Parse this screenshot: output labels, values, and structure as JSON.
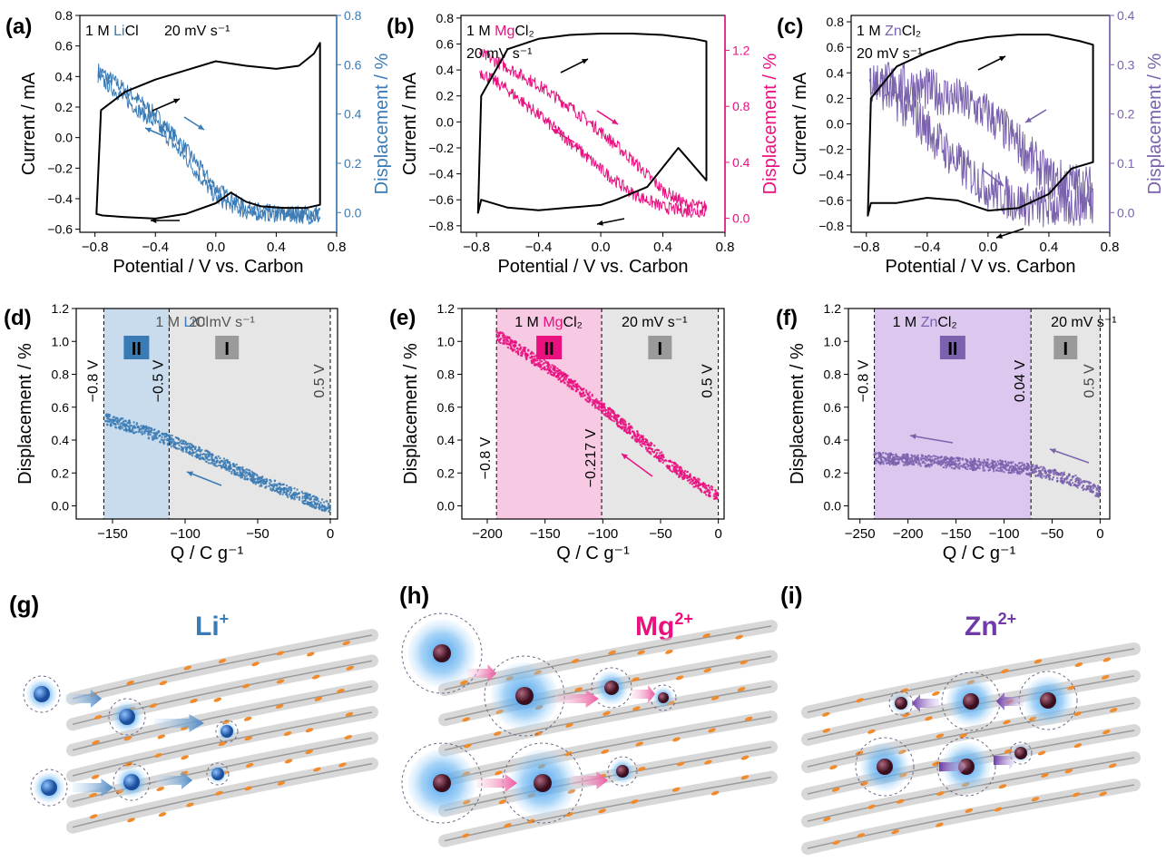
{
  "colors": {
    "li": "#3b7bb5",
    "mg": "#e8117f",
    "zn": "#7a62ad",
    "cv": "#000000",
    "region_ii_li": "#c9dcee",
    "region_ii_mg": "#f8c9e2",
    "region_ii_zn": "#dcc8ef",
    "region_i": "#e6e6e6",
    "badge_grey": "#9a9a9a",
    "ion_core": "#2a5fb0",
    "ion_core_dark": "#5c1a2e",
    "sheet": "#cfcfcf",
    "dot": "#f08a2a",
    "glow": "#4aa3ee"
  },
  "panels": {
    "a": {
      "tag": "(a)",
      "label_conc": "1 M",
      "label_ion": "Li",
      "label_rest": "Cl",
      "label_rate": "20 mV s⁻¹",
      "ylabel": "Current / mA",
      "y2label": "Displacement / %",
      "xlabel": "Potential / V vs. Carbon"
    },
    "b": {
      "tag": "(b)",
      "label_conc": "1 M",
      "label_ion": "Mg",
      "label_rest": "Cl₂",
      "label_rate": "20 mV s⁻¹",
      "ylabel": "Current / mA",
      "y2label": "Displacement / %",
      "xlabel": "Potential / V vs. Carbon"
    },
    "c": {
      "tag": "(c)",
      "label_conc": "1 M",
      "label_ion": "Zn",
      "label_rest": "Cl₂",
      "label_rate": "20 mV s⁻¹",
      "ylabel": "Current / mA",
      "y2label": "Displacement / %",
      "xlabel": "Potential / V vs. Carbon"
    },
    "d": {
      "tag": "(d)",
      "label_conc": "1 M",
      "label_ion": "Li",
      "label_rest": "Cl",
      "label_rate": "20 mV s⁻¹",
      "ylabel": "Displacement / %",
      "xlabel": "Q / C g⁻¹",
      "badge_ii": "II",
      "badge_i": "I",
      "v_labels": [
        "−0.8 V",
        "−0.5 V",
        "0.5 V"
      ]
    },
    "e": {
      "tag": "(e)",
      "label_conc": "1 M",
      "label_ion": "Mg",
      "label_rest": "Cl₂",
      "label_rate": "20 mV s⁻¹",
      "ylabel": "Displacement / %",
      "xlabel": "Q / C g⁻¹",
      "badge_ii": "II",
      "badge_i": "I",
      "v_labels": [
        "−0.8 V",
        "−0.217 V",
        "0.5 V"
      ]
    },
    "f": {
      "tag": "(f)",
      "label_conc": "1 M",
      "label_ion": "Zn",
      "label_rest": "Cl₂",
      "label_rate": "20 mV s⁻¹",
      "ylabel": "Displacement / %",
      "xlabel": "Q / C g⁻¹",
      "badge_ii": "II",
      "badge_i": "I",
      "v_labels": [
        "−0.8 V",
        "0.04 V",
        "0.5 V"
      ]
    },
    "g": {
      "tag": "(g)",
      "ion": "Li",
      "charge": "+"
    },
    "h": {
      "tag": "(h)",
      "ion": "Mg",
      "charge": "2+"
    },
    "i": {
      "tag": "(i)",
      "ion": "Zn",
      "charge": "2+"
    }
  },
  "chart_data": [
    {
      "panel": "a",
      "type": "line",
      "xlim": [
        -0.9,
        0.8
      ],
      "xticks": [
        -0.8,
        -0.4,
        0.0,
        0.4,
        0.8
      ],
      "ylim": [
        -0.62,
        0.8
      ],
      "yticks": [
        -0.6,
        -0.4,
        -0.2,
        0.0,
        0.2,
        0.4,
        0.6,
        0.8
      ],
      "y2lim": [
        -0.08,
        0.8
      ],
      "y2ticks": [
        0.0,
        0.2,
        0.4,
        0.6,
        0.8
      ],
      "series": [
        {
          "axis": "left",
          "style": "cv",
          "x": [
            -0.79,
            -0.76,
            -0.6,
            -0.4,
            -0.2,
            0.0,
            0.2,
            0.4,
            0.55,
            0.65,
            0.69,
            0.69,
            0.6,
            0.45,
            0.3,
            0.2,
            0.1,
            0.0,
            -0.2,
            -0.4,
            -0.6,
            -0.75,
            -0.79
          ],
          "y": [
            -0.5,
            0.18,
            0.3,
            0.38,
            0.44,
            0.5,
            0.47,
            0.45,
            0.47,
            0.55,
            0.62,
            -0.44,
            -0.46,
            -0.46,
            -0.45,
            -0.42,
            -0.36,
            -0.43,
            -0.5,
            -0.53,
            -0.52,
            -0.51,
            -0.5
          ]
        },
        {
          "axis": "right",
          "style": "disp",
          "x": [
            -0.78,
            -0.6,
            -0.4,
            -0.2,
            0.0,
            0.2,
            0.4,
            0.69
          ],
          "y": [
            0.58,
            0.5,
            0.4,
            0.26,
            0.1,
            0.02,
            0.0,
            0.0
          ]
        },
        {
          "axis": "right",
          "style": "disp",
          "x": [
            -0.78,
            -0.6,
            -0.4,
            -0.2,
            0.0,
            0.2,
            0.4,
            0.69
          ],
          "y": [
            0.55,
            0.46,
            0.36,
            0.22,
            0.06,
            0.0,
            -0.01,
            -0.02
          ]
        }
      ]
    },
    {
      "panel": "b",
      "type": "line",
      "xlim": [
        -0.9,
        0.8
      ],
      "xticks": [
        -0.8,
        -0.4,
        0.0,
        0.4,
        0.8
      ],
      "ylim": [
        -0.85,
        0.82
      ],
      "yticks": [
        -0.8,
        -0.6,
        -0.4,
        -0.2,
        0.0,
        0.2,
        0.4,
        0.6,
        0.8
      ],
      "y2lim": [
        -0.1,
        1.45
      ],
      "y2ticks": [
        0.0,
        0.4,
        0.8,
        1.2
      ],
      "series": [
        {
          "axis": "left",
          "style": "cv",
          "x": [
            -0.79,
            -0.77,
            -0.6,
            -0.4,
            -0.2,
            0.0,
            0.2,
            0.4,
            0.6,
            0.68,
            0.68,
            0.5,
            0.3,
            0.1,
            0.0,
            -0.2,
            -0.4,
            -0.6,
            -0.77,
            -0.79
          ],
          "y": [
            -0.7,
            0.2,
            0.56,
            0.64,
            0.67,
            0.68,
            0.68,
            0.67,
            0.64,
            0.62,
            -0.45,
            -0.2,
            -0.5,
            -0.6,
            -0.64,
            -0.66,
            -0.68,
            -0.66,
            -0.6,
            -0.7
          ]
        },
        {
          "axis": "right",
          "style": "disp",
          "x": [
            -0.78,
            -0.6,
            -0.4,
            -0.2,
            0.0,
            0.2,
            0.4,
            0.55,
            0.68
          ],
          "y": [
            1.18,
            1.08,
            0.95,
            0.8,
            0.62,
            0.42,
            0.2,
            0.1,
            0.08
          ]
        },
        {
          "axis": "right",
          "style": "disp",
          "x": [
            -0.78,
            -0.6,
            -0.4,
            -0.2,
            0.0,
            0.2,
            0.4,
            0.55,
            0.68
          ],
          "y": [
            1.05,
            0.92,
            0.74,
            0.55,
            0.35,
            0.18,
            0.08,
            0.05,
            0.05
          ]
        }
      ]
    },
    {
      "panel": "c",
      "type": "line",
      "xlim": [
        -0.9,
        0.8
      ],
      "xticks": [
        -0.8,
        -0.4,
        0.0,
        0.4,
        0.8
      ],
      "ylim": [
        -0.85,
        0.85
      ],
      "yticks": [
        -0.8,
        -0.6,
        -0.4,
        -0.2,
        0.0,
        0.2,
        0.4,
        0.6,
        0.8
      ],
      "y2lim": [
        -0.04,
        0.4
      ],
      "y2ticks": [
        0.0,
        0.1,
        0.2,
        0.3,
        0.4
      ],
      "series": [
        {
          "axis": "left",
          "style": "cv",
          "x": [
            -0.79,
            -0.77,
            -0.6,
            -0.4,
            -0.2,
            0.0,
            0.2,
            0.4,
            0.6,
            0.69,
            0.69,
            0.55,
            0.4,
            0.2,
            0.0,
            -0.2,
            -0.4,
            -0.6,
            -0.77,
            -0.79
          ],
          "y": [
            -0.72,
            0.2,
            0.45,
            0.56,
            0.64,
            0.68,
            0.7,
            0.7,
            0.65,
            0.62,
            -0.3,
            -0.35,
            -0.55,
            -0.66,
            -0.68,
            -0.6,
            -0.58,
            -0.62,
            -0.62,
            -0.72
          ]
        },
        {
          "axis": "right",
          "style": "disp",
          "x": [
            -0.78,
            -0.6,
            -0.4,
            -0.2,
            0.0,
            0.2,
            0.4,
            0.69
          ],
          "y": [
            0.27,
            0.26,
            0.25,
            0.23,
            0.2,
            0.14,
            0.07,
            0.05
          ]
        },
        {
          "axis": "right",
          "style": "disp",
          "x": [
            -0.78,
            -0.6,
            -0.4,
            -0.2,
            0.0,
            0.2,
            0.4,
            0.69
          ],
          "y": [
            0.27,
            0.23,
            0.17,
            0.1,
            0.05,
            0.02,
            0.01,
            0.02
          ]
        }
      ]
    },
    {
      "panel": "d",
      "type": "scatter",
      "xlim": [
        -175,
        5
      ],
      "xticks": [
        -150,
        -100,
        -50,
        0
      ],
      "ylim": [
        -0.08,
        1.2
      ],
      "yticks": [
        0.0,
        0.2,
        0.4,
        0.6,
        0.8,
        1.0,
        1.2
      ],
      "regions": [
        {
          "name": "II",
          "x0": -156,
          "x1": -111
        },
        {
          "name": "I",
          "x0": -111,
          "x1": 0
        }
      ],
      "vlines": [
        -156,
        -111,
        0
      ],
      "series": [
        {
          "x": [
            -155,
            -130,
            -111,
            -90,
            -70,
            -50,
            -30,
            -10,
            0
          ],
          "y": [
            0.53,
            0.46,
            0.4,
            0.32,
            0.24,
            0.16,
            0.09,
            0.02,
            -0.01
          ]
        }
      ]
    },
    {
      "panel": "e",
      "type": "scatter",
      "xlim": [
        -222,
        5
      ],
      "xticks": [
        -200,
        -150,
        -100,
        -50,
        0
      ],
      "ylim": [
        -0.08,
        1.2
      ],
      "yticks": [
        0.0,
        0.2,
        0.4,
        0.6,
        0.8,
        1.0,
        1.2
      ],
      "regions": [
        {
          "name": "II",
          "x0": -192,
          "x1": -101
        },
        {
          "name": "I",
          "x0": -101,
          "x1": 0
        }
      ],
      "vlines": [
        -192,
        -101,
        0
      ],
      "series": [
        {
          "x": [
            -192,
            -170,
            -150,
            -130,
            -101,
            -80,
            -60,
            -40,
            -20,
            0
          ],
          "y": [
            1.04,
            0.94,
            0.85,
            0.76,
            0.6,
            0.48,
            0.36,
            0.24,
            0.14,
            0.06
          ]
        }
      ]
    },
    {
      "panel": "f",
      "type": "scatter",
      "xlim": [
        -262,
        10
      ],
      "xticks": [
        -250,
        -200,
        -150,
        -100,
        -50,
        0
      ],
      "ylim": [
        -0.08,
        1.2
      ],
      "yticks": [
        0.0,
        0.2,
        0.4,
        0.6,
        0.8,
        1.0,
        1.2
      ],
      "regions": [
        {
          "name": "II",
          "x0": -235,
          "x1": -72
        },
        {
          "name": "I",
          "x0": -72,
          "x1": 0
        }
      ],
      "vlines": [
        -235,
        -72,
        0
      ],
      "series": [
        {
          "x": [
            -235,
            -200,
            -150,
            -100,
            -72,
            -50,
            -25,
            0
          ],
          "y": [
            0.29,
            0.28,
            0.26,
            0.24,
            0.22,
            0.19,
            0.15,
            0.08
          ]
        }
      ]
    }
  ]
}
